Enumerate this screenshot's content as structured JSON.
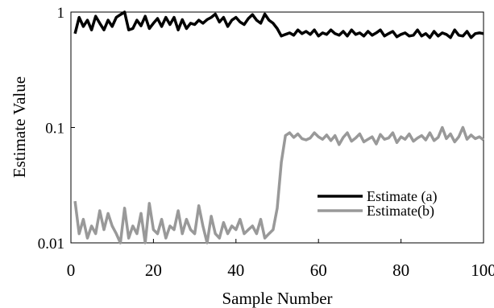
{
  "chart_data": {
    "type": "line",
    "title": "",
    "xlabel": "Sample Number",
    "ylabel": "Estimate Value",
    "xlim": [
      0,
      100
    ],
    "ylim": [
      0.01,
      1
    ],
    "y_scale": "log",
    "x_ticks": [
      "0",
      "20",
      "40",
      "60",
      "80",
      "100"
    ],
    "y_ticks": [
      "0.01",
      "0.1",
      "1"
    ],
    "grid": false,
    "legend_position": "bottom-right",
    "series": [
      {
        "name": "Estimate (a)",
        "color": "#000000",
        "x": [
          1,
          2,
          3,
          4,
          5,
          6,
          7,
          8,
          9,
          10,
          11,
          12,
          13,
          14,
          15,
          16,
          17,
          18,
          19,
          20,
          21,
          22,
          23,
          24,
          25,
          26,
          27,
          28,
          29,
          30,
          31,
          32,
          33,
          34,
          35,
          36,
          37,
          38,
          39,
          40,
          41,
          42,
          43,
          44,
          45,
          46,
          47,
          48,
          49,
          50,
          51,
          52,
          53,
          54,
          55,
          56,
          57,
          58,
          59,
          60,
          61,
          62,
          63,
          64,
          65,
          66,
          67,
          68,
          69,
          70,
          71,
          72,
          73,
          74,
          75,
          76,
          77,
          78,
          79,
          80,
          81,
          82,
          83,
          84,
          85,
          86,
          87,
          88,
          89,
          90,
          91,
          92,
          93,
          94,
          95,
          96,
          97,
          98,
          99,
          100
        ],
        "y": [
          0.65,
          0.9,
          0.75,
          0.85,
          0.7,
          0.92,
          0.8,
          0.7,
          0.85,
          0.75,
          0.9,
          0.95,
          1.0,
          0.7,
          0.72,
          0.85,
          0.76,
          0.92,
          0.72,
          0.8,
          0.88,
          0.75,
          0.9,
          0.78,
          0.9,
          0.7,
          0.86,
          0.72,
          0.8,
          0.78,
          0.85,
          0.8,
          0.86,
          0.9,
          0.96,
          0.82,
          0.9,
          0.75,
          0.85,
          0.9,
          0.82,
          0.78,
          0.88,
          0.95,
          0.85,
          0.8,
          0.96,
          0.85,
          0.8,
          0.72,
          0.62,
          0.64,
          0.66,
          0.63,
          0.7,
          0.65,
          0.68,
          0.64,
          0.7,
          0.62,
          0.66,
          0.64,
          0.7,
          0.65,
          0.63,
          0.68,
          0.62,
          0.7,
          0.64,
          0.66,
          0.62,
          0.68,
          0.63,
          0.66,
          0.7,
          0.62,
          0.65,
          0.68,
          0.61,
          0.64,
          0.66,
          0.62,
          0.63,
          0.7,
          0.62,
          0.65,
          0.6,
          0.68,
          0.62,
          0.66,
          0.64,
          0.6,
          0.7,
          0.63,
          0.62,
          0.68,
          0.6,
          0.65,
          0.66,
          0.65
        ]
      },
      {
        "name": "Estimate(b)",
        "color": "#999999",
        "x": [
          1,
          2,
          3,
          4,
          5,
          6,
          7,
          8,
          9,
          10,
          11,
          12,
          13,
          14,
          15,
          16,
          17,
          18,
          19,
          20,
          21,
          22,
          23,
          24,
          25,
          26,
          27,
          28,
          29,
          30,
          31,
          32,
          33,
          34,
          35,
          36,
          37,
          38,
          39,
          40,
          41,
          42,
          43,
          44,
          45,
          46,
          47,
          48,
          49,
          50,
          51,
          52,
          53,
          54,
          55,
          56,
          57,
          58,
          59,
          60,
          61,
          62,
          63,
          64,
          65,
          66,
          67,
          68,
          69,
          70,
          71,
          72,
          73,
          74,
          75,
          76,
          77,
          78,
          79,
          80,
          81,
          82,
          83,
          84,
          85,
          86,
          87,
          88,
          89,
          90,
          91,
          92,
          93,
          94,
          95,
          96,
          97,
          98,
          99,
          100
        ],
        "y": [
          0.023,
          0.012,
          0.016,
          0.011,
          0.014,
          0.012,
          0.019,
          0.013,
          0.018,
          0.014,
          0.012,
          0.01,
          0.02,
          0.011,
          0.014,
          0.012,
          0.018,
          0.01,
          0.022,
          0.013,
          0.012,
          0.016,
          0.011,
          0.014,
          0.013,
          0.019,
          0.012,
          0.016,
          0.013,
          0.012,
          0.021,
          0.014,
          0.01,
          0.017,
          0.012,
          0.011,
          0.015,
          0.012,
          0.014,
          0.013,
          0.016,
          0.012,
          0.013,
          0.014,
          0.012,
          0.016,
          0.011,
          0.012,
          0.013,
          0.02,
          0.05,
          0.085,
          0.09,
          0.082,
          0.088,
          0.08,
          0.078,
          0.081,
          0.09,
          0.083,
          0.079,
          0.086,
          0.077,
          0.085,
          0.071,
          0.082,
          0.09,
          0.076,
          0.081,
          0.088,
          0.075,
          0.079,
          0.083,
          0.072,
          0.087,
          0.079,
          0.081,
          0.09,
          0.074,
          0.083,
          0.079,
          0.088,
          0.076,
          0.081,
          0.085,
          0.078,
          0.09,
          0.077,
          0.082,
          0.1,
          0.08,
          0.088,
          0.075,
          0.083,
          0.1,
          0.079,
          0.086,
          0.08,
          0.083,
          0.078
        ]
      }
    ]
  }
}
